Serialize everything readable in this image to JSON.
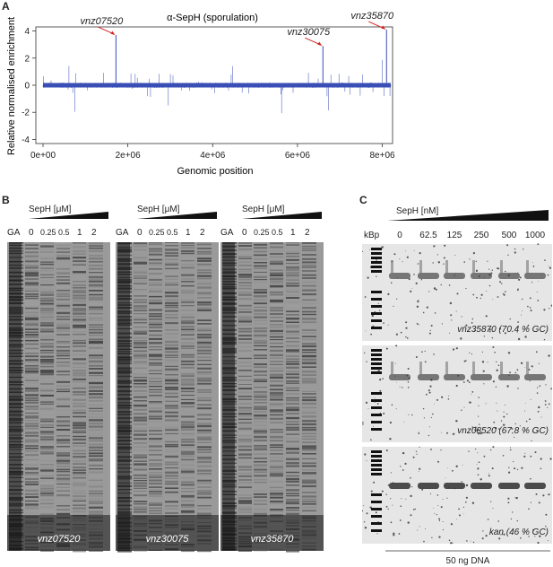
{
  "panels": {
    "a": {
      "letter": "A",
      "chart_data": {
        "type": "line",
        "title": "α-SepH (sporulation)",
        "xlabel": "Genomic position",
        "ylabel": "Relative normalised enrichment",
        "xlim": [
          0,
          8200000
        ],
        "ylim": [
          -4.3,
          4.3
        ],
        "x_ticks": [
          0,
          2000000,
          4000000,
          6000000,
          8000000
        ],
        "x_tick_labels": [
          "0e+00",
          "2e+06",
          "4e+06",
          "6e+06",
          "8e+06"
        ],
        "y_ticks": [
          -4,
          -2,
          0,
          2,
          4
        ],
        "y_tick_labels": [
          "-4",
          "-2",
          "0",
          "2",
          "4"
        ],
        "series_color": "#3a4fb5",
        "peaks": [
          {
            "label": "vnz07520",
            "x": 1720000,
            "y": 3.7
          },
          {
            "label": "vnz30075",
            "x": 6600000,
            "y": 2.9
          },
          {
            "label": "vnz35870",
            "x": 8100000,
            "y": 4.1
          }
        ],
        "annotation_color": "#d42020"
      }
    },
    "b": {
      "letter": "B",
      "gels": [
        {
          "header": "SepH [μM]",
          "ga": "GA",
          "lanes": [
            "0",
            "0.25",
            "0.5",
            "1",
            "2"
          ],
          "gene": "vnz07520"
        },
        {
          "header": "SepH [μM]",
          "ga": "GA",
          "lanes": [
            "0",
            "0.25",
            "0.5",
            "1",
            "2"
          ],
          "gene": "vnz30075"
        },
        {
          "header": "SepH [μM]",
          "ga": "GA",
          "lanes": [
            "0",
            "0.25",
            "0.5",
            "1",
            "2"
          ],
          "gene": "vnz35870"
        }
      ]
    },
    "c": {
      "letter": "C",
      "header": "SepH [nM]",
      "kbp": "kBp",
      "lanes": [
        "0",
        "62.5",
        "125",
        "250",
        "500",
        "1000"
      ],
      "gels": [
        {
          "label": "vnz35870 (70.4 % GC)"
        },
        {
          "label": "vnz08520 (67.8 % GC)"
        },
        {
          "label": "kan (46 % GC)"
        }
      ],
      "footer": "50 ng DNA"
    }
  }
}
